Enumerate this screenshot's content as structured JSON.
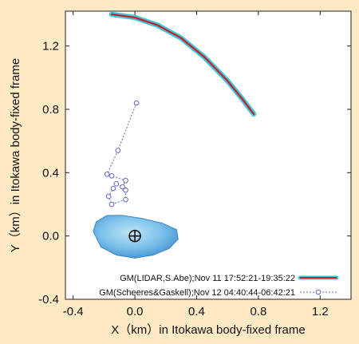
{
  "chart_data": {
    "type": "line",
    "xlabel": "X（km）in Itokawa body-fixed frame",
    "ylabel": "Y（km）in Itokawa body-fixed frame",
    "xlim": [
      -0.45,
      1.4
    ],
    "ylim": [
      -0.4,
      1.42
    ],
    "xticks": [
      -0.4,
      0.0,
      0.4,
      0.8,
      1.2
    ],
    "yticks": [
      -0.4,
      0.0,
      0.4,
      0.8,
      1.2
    ],
    "xtick_labels": [
      "-0.4",
      "0.0",
      "0.4",
      "0.8",
      "1.2"
    ],
    "ytick_labels": [
      "-0.4",
      "0.0",
      "0.4",
      "0.8",
      "1.2"
    ],
    "grid": false,
    "legend_position": "bottom-right",
    "series": [
      {
        "name": "GM(LIDAR,S.Abe);Nov 11 17:52:21-19:35:22",
        "style": "solid",
        "color": "#cc1f1f",
        "outline_color": "#3fc6dc",
        "x": [
          -0.15,
          0.0,
          0.15,
          0.3,
          0.45,
          0.6,
          0.7,
          0.77
        ],
        "y": [
          1.4,
          1.38,
          1.33,
          1.25,
          1.13,
          0.98,
          0.86,
          0.77
        ]
      },
      {
        "name": "GM(Scheeres&Gaskell);Nov 12 04:40:44-06:42:21",
        "style": "dotted-circles",
        "color": "#5b66c9",
        "x": [
          0.01,
          -0.11,
          -0.18,
          -0.15,
          -0.06,
          -0.08,
          -0.12,
          -0.14,
          -0.17,
          -0.15,
          -0.06,
          -0.06
        ],
        "y": [
          0.84,
          0.54,
          0.39,
          0.38,
          0.35,
          0.31,
          0.33,
          0.3,
          0.25,
          0.2,
          0.23,
          0.29
        ]
      }
    ],
    "annotations": {
      "asteroid_shape": {
        "center_x": 0.0,
        "center_y": 0.0,
        "outline_x": [
          -0.27,
          -0.25,
          -0.18,
          -0.08,
          0.05,
          0.18,
          0.27,
          0.28,
          0.22,
          0.12,
          0.0,
          -0.12,
          -0.22,
          -0.27
        ],
        "outline_y": [
          0.03,
          0.09,
          0.13,
          0.13,
          0.11,
          0.08,
          0.04,
          -0.02,
          -0.08,
          -0.12,
          -0.14,
          -0.12,
          -0.07,
          0.03
        ],
        "fill_color": "#6cb6e6"
      },
      "center_marker": {
        "x": 0.0,
        "y": 0.0,
        "symbol": "circled-plus"
      }
    }
  }
}
